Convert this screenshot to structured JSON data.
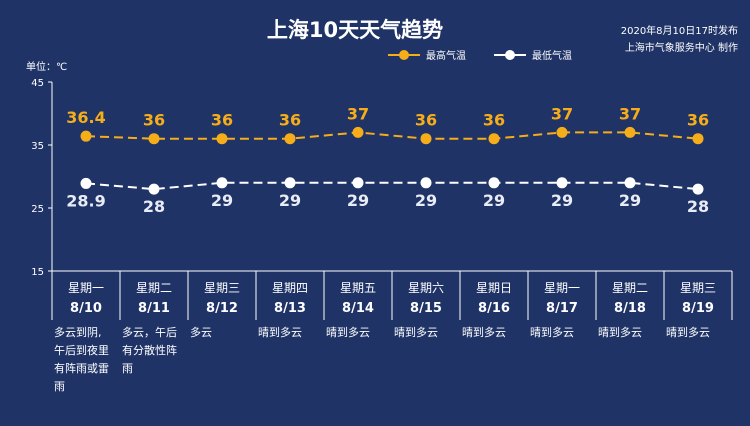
{
  "header": {
    "title": "上海10天天气趋势",
    "publish_line1": "2020年8月10日17时发布",
    "publish_line2": "上海市气象服务中心 制作"
  },
  "unit_label": "单位：℃",
  "colors": {
    "background": "#1f3367",
    "high": "#f6ad1a",
    "low": "#ffffff",
    "axis": "#ffffff"
  },
  "chart_data": {
    "type": "line",
    "title": "上海10天天气趋势",
    "ylabel": "单位：℃",
    "ylim": [
      15,
      45
    ],
    "yticks": [
      15,
      25,
      35,
      45
    ],
    "legend_position": "top-right",
    "categories": [
      {
        "day": "星期一",
        "date": "8/10"
      },
      {
        "day": "星期二",
        "date": "8/11"
      },
      {
        "day": "星期三",
        "date": "8/12"
      },
      {
        "day": "星期四",
        "date": "8/13"
      },
      {
        "day": "星期五",
        "date": "8/14"
      },
      {
        "day": "星期六",
        "date": "8/15"
      },
      {
        "day": "星期日",
        "date": "8/16"
      },
      {
        "day": "星期一",
        "date": "8/17"
      },
      {
        "day": "星期二",
        "date": "8/18"
      },
      {
        "day": "星期三",
        "date": "8/19"
      }
    ],
    "series": [
      {
        "name": "最高气温",
        "values": [
          36.4,
          36,
          36,
          36,
          37,
          36,
          36,
          37,
          37,
          36
        ]
      },
      {
        "name": "最低气温",
        "values": [
          28.9,
          28,
          29,
          29,
          29,
          29,
          29,
          29,
          29,
          28
        ]
      }
    ],
    "weather": [
      [
        "多云到阴,",
        "午后到夜里",
        "有阵雨或雷",
        "雨"
      ],
      [
        "多云，午后",
        "有分散性阵",
        "雨"
      ],
      [
        "多云"
      ],
      [
        "晴到多云"
      ],
      [
        "晴到多云"
      ],
      [
        "晴到多云"
      ],
      [
        "晴到多云"
      ],
      [
        "晴到多云"
      ],
      [
        "晴到多云"
      ],
      [
        "晴到多云"
      ]
    ]
  }
}
